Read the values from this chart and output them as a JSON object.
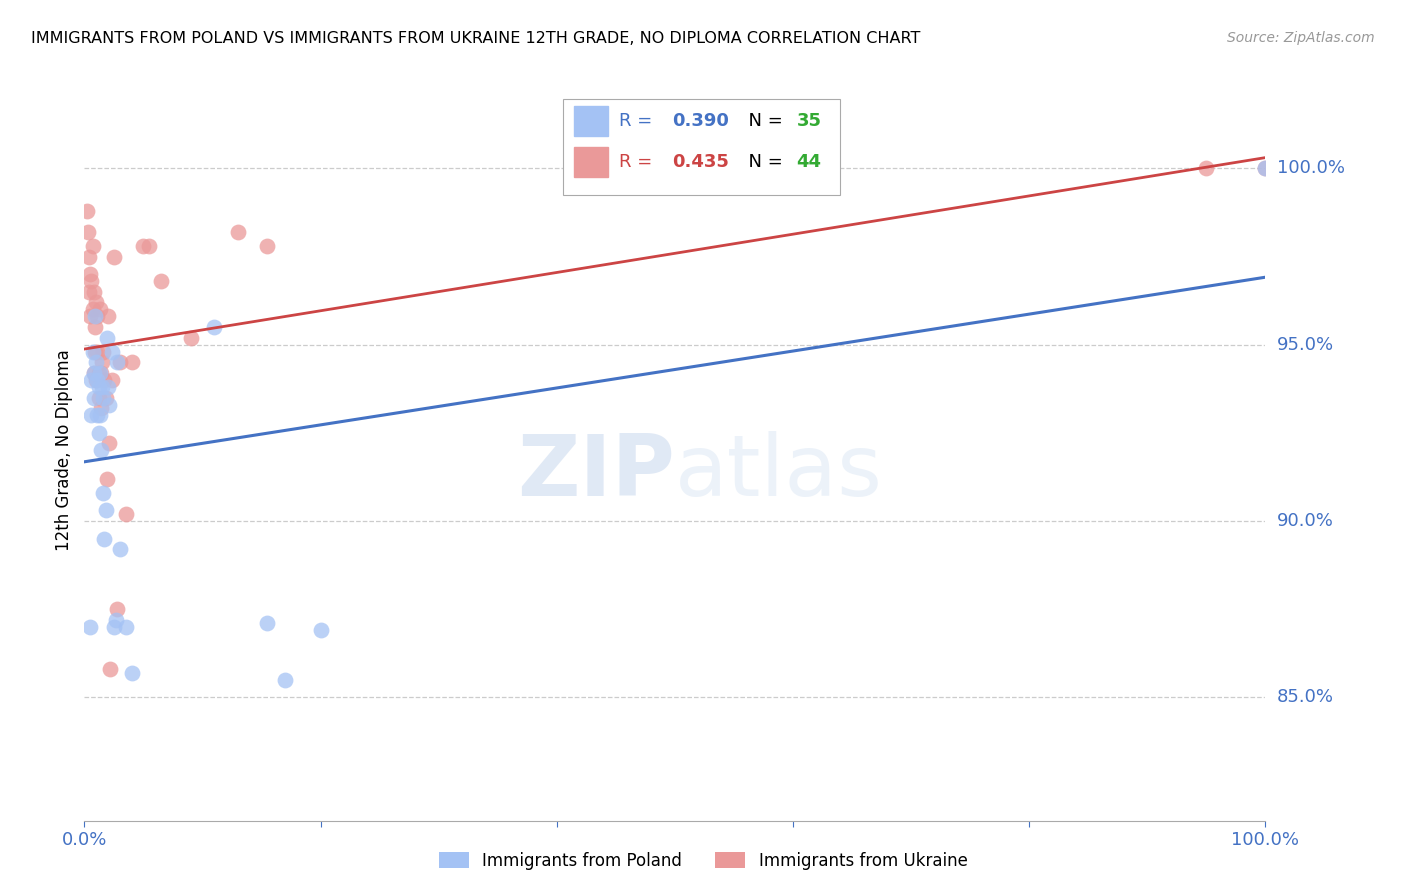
{
  "title": "IMMIGRANTS FROM POLAND VS IMMIGRANTS FROM UKRAINE 12TH GRADE, NO DIPLOMA CORRELATION CHART",
  "source": "Source: ZipAtlas.com",
  "ylabel": "12th Grade, No Diploma",
  "ylabel_right_labels": [
    "100.0%",
    "95.0%",
    "90.0%",
    "85.0%"
  ],
  "ylabel_right_values": [
    1.0,
    0.95,
    0.9,
    0.85
  ],
  "poland_R": 0.39,
  "poland_N": 35,
  "ukraine_R": 0.435,
  "ukraine_N": 44,
  "poland_color": "#a4c2f4",
  "ukraine_color": "#ea9999",
  "poland_line_color": "#4472c4",
  "ukraine_line_color": "#cc4444",
  "legend_poland": "Immigrants from Poland",
  "legend_ukraine": "Immigrants from Ukraine",
  "xlim": [
    0.0,
    1.0
  ],
  "ylim": [
    0.815,
    1.025
  ],
  "poland_x": [
    0.005,
    0.006,
    0.006,
    0.007,
    0.008,
    0.008,
    0.009,
    0.01,
    0.011,
    0.011,
    0.012,
    0.012,
    0.013,
    0.013,
    0.014,
    0.015,
    0.016,
    0.016,
    0.017,
    0.018,
    0.019,
    0.02,
    0.021,
    0.023,
    0.025,
    0.027,
    0.028,
    0.03,
    0.035,
    0.04,
    0.11,
    0.155,
    0.17,
    0.2,
    1.0
  ],
  "poland_y": [
    0.87,
    0.94,
    0.93,
    0.948,
    0.942,
    0.935,
    0.958,
    0.945,
    0.94,
    0.93,
    0.938,
    0.925,
    0.942,
    0.93,
    0.92,
    0.938,
    0.935,
    0.908,
    0.895,
    0.903,
    0.952,
    0.938,
    0.933,
    0.948,
    0.87,
    0.872,
    0.945,
    0.892,
    0.87,
    0.857,
    0.955,
    0.871,
    0.855,
    0.869,
    1.0
  ],
  "ukraine_x": [
    0.002,
    0.003,
    0.004,
    0.004,
    0.005,
    0.005,
    0.006,
    0.007,
    0.007,
    0.008,
    0.008,
    0.009,
    0.009,
    0.01,
    0.01,
    0.011,
    0.011,
    0.012,
    0.012,
    0.013,
    0.014,
    0.014,
    0.015,
    0.016,
    0.017,
    0.018,
    0.019,
    0.02,
    0.021,
    0.022,
    0.023,
    0.025,
    0.028,
    0.03,
    0.035,
    0.04,
    0.05,
    0.055,
    0.065,
    0.09,
    0.13,
    0.155,
    0.95,
    1.0
  ],
  "ukraine_y": [
    0.988,
    0.982,
    0.965,
    0.975,
    0.958,
    0.97,
    0.968,
    0.96,
    0.978,
    0.965,
    0.942,
    0.955,
    0.948,
    0.962,
    0.94,
    0.958,
    0.948,
    0.942,
    0.935,
    0.96,
    0.942,
    0.932,
    0.945,
    0.948,
    0.94,
    0.935,
    0.912,
    0.958,
    0.922,
    0.858,
    0.94,
    0.975,
    0.875,
    0.945,
    0.902,
    0.945,
    0.978,
    0.978,
    0.968,
    0.952,
    0.982,
    0.978,
    1.0,
    1.0
  ]
}
